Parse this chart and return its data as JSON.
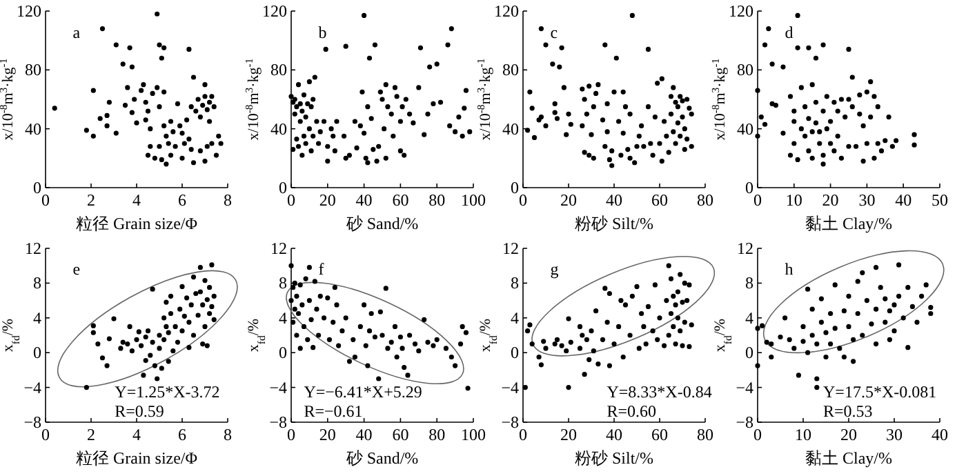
{
  "chart_data": [
    {
      "type": "scatter",
      "marker": "circle",
      "xlabel": "粒径 Grain size/Φ",
      "ylabel": "x/10$^{-8}$m$^{3}$·kg$^{-1}$",
      "annotations": [
        "a"
      ],
      "xlim": [
        0,
        8
      ],
      "xticks": [
        0,
        2,
        4,
        6,
        8
      ],
      "ylim": [
        0,
        120
      ],
      "yticks": [
        0,
        40,
        80,
        120
      ],
      "color": "#000000",
      "x": [
        0.4,
        1.8,
        2.1,
        2.1,
        2.4,
        2.5,
        2.7,
        2.8,
        2.7,
        3.1,
        3.1,
        3.4,
        3.5,
        3.6,
        3.7,
        3.8,
        3.8,
        3.9,
        4.0,
        4.2,
        4.3,
        4.4,
        4.4,
        4.5,
        4.6,
        4.6,
        4.5,
        4.7,
        4.8,
        4.9,
        4.9,
        5.0,
        5.0,
        5.0,
        5.1,
        5.1,
        5.2,
        5.2,
        5.2,
        5.3,
        5.3,
        5.4,
        5.5,
        5.5,
        5.6,
        5.7,
        5.8,
        5.9,
        6.0,
        6.0,
        6.1,
        6.2,
        6.3,
        6.3,
        6.4,
        6.4,
        6.5,
        6.5,
        6.6,
        6.7,
        6.8,
        6.8,
        6.9,
        7.0,
        7.0,
        7.0,
        7.1,
        7.1,
        7.2,
        7.2,
        7.3,
        7.3,
        7.4,
        7.5,
        7.6,
        7.7
      ],
      "values": [
        54,
        39,
        66,
        35,
        47,
        108,
        49,
        58,
        42,
        97,
        37,
        84,
        56,
        68,
        95,
        82,
        51,
        60,
        44,
        66,
        70,
        58,
        46,
        52,
        40,
        28,
        22,
        64,
        20,
        118,
        68,
        97,
        55,
        28,
        88,
        19,
        95,
        65,
        42,
        35,
        16,
        30,
        45,
        22,
        38,
        28,
        57,
        42,
        37,
        20,
        30,
        46,
        94,
        33,
        55,
        26,
        75,
        17,
        52,
        60,
        48,
        25,
        56,
        70,
        62,
        18,
        53,
        28,
        58,
        45,
        62,
        30,
        55,
        22,
        35,
        30
      ]
    },
    {
      "type": "scatter",
      "marker": "circle",
      "xlabel": "砂 Sand/%",
      "ylabel": "x/10$^{-8}$m$^{3}$·kg$^{-1}$",
      "annotations": [
        "b"
      ],
      "xlim": [
        0,
        100
      ],
      "xticks": [
        0,
        20,
        40,
        60,
        80,
        100
      ],
      "ylim": [
        0,
        120
      ],
      "yticks": [
        0,
        40,
        80,
        120
      ],
      "color": "#000000",
      "x": [
        0,
        1,
        1,
        2,
        2,
        3,
        3,
        4,
        4,
        5,
        5,
        6,
        6,
        7,
        7,
        8,
        8,
        9,
        10,
        10,
        11,
        11,
        12,
        12,
        13,
        14,
        15,
        16,
        18,
        19,
        20,
        20,
        22,
        23,
        24,
        25,
        29,
        30,
        30,
        32,
        35,
        36,
        38,
        39,
        40,
        40,
        41,
        42,
        42,
        43,
        44,
        45,
        46,
        47,
        48,
        49,
        50,
        51,
        52,
        52,
        53,
        55,
        56,
        57,
        58,
        60,
        60,
        61,
        62,
        63,
        65,
        67,
        70,
        71,
        73,
        75,
        76,
        78,
        80,
        82,
        86,
        87,
        88,
        90,
        92,
        94,
        95,
        96,
        98
      ],
      "values": [
        62,
        58,
        26,
        60,
        50,
        55,
        33,
        70,
        28,
        57,
        45,
        52,
        22,
        63,
        35,
        48,
        30,
        57,
        72,
        40,
        55,
        25,
        60,
        35,
        75,
        45,
        30,
        38,
        45,
        94,
        28,
        18,
        40,
        35,
        25,
        45,
        35,
        96,
        20,
        22,
        45,
        27,
        42,
        65,
        117,
        37,
        20,
        55,
        17,
        88,
        47,
        26,
        97,
        18,
        28,
        65,
        60,
        40,
        70,
        20,
        55,
        50,
        35,
        68,
        62,
        45,
        25,
        55,
        22,
        60,
        50,
        44,
        68,
        95,
        36,
        50,
        82,
        57,
        84,
        58,
        97,
        42,
        108,
        38,
        48,
        35,
        54,
        66,
        38
      ]
    },
    {
      "type": "scatter",
      "marker": "circle",
      "xlabel": "粉砂 Silt/%",
      "ylabel": "x/10$^{-8}$m$^{3}$·kg$^{-1}$",
      "annotations": [
        "c"
      ],
      "xlim": [
        0,
        80
      ],
      "xticks": [
        0,
        20,
        40,
        60,
        80
      ],
      "ylim": [
        0,
        120
      ],
      "yticks": [
        0,
        40,
        80,
        120
      ],
      "color": "#000000",
      "x": [
        2,
        3,
        4,
        5,
        7,
        8,
        8,
        10,
        10,
        13,
        14,
        14,
        15,
        16,
        17,
        18,
        19,
        20,
        21,
        26,
        26,
        27,
        27,
        28,
        29,
        29,
        30,
        31,
        31,
        32,
        33,
        35,
        36,
        36,
        37,
        37,
        38,
        39,
        39,
        40,
        41,
        42,
        43,
        44,
        44,
        45,
        46,
        47,
        47,
        48,
        49,
        50,
        51,
        52,
        53,
        55,
        55,
        56,
        57,
        58,
        59,
        60,
        61,
        61,
        62,
        63,
        64,
        65,
        65,
        66,
        66,
        67,
        67,
        68,
        68,
        69,
        69,
        70,
        70,
        71,
        71,
        72,
        72,
        73,
        74,
        74
      ],
      "values": [
        39,
        65,
        54,
        34,
        46,
        108,
        48,
        97,
        42,
        84,
        57,
        51,
        47,
        82,
        95,
        68,
        36,
        50,
        43,
        67,
        42,
        24,
        60,
        50,
        69,
        22,
        36,
        55,
        20,
        64,
        70,
        46,
        97,
        28,
        38,
        57,
        19,
        15,
        25,
        65,
        88,
        45,
        22,
        65,
        37,
        55,
        26,
        20,
        50,
        117,
        17,
        28,
        35,
        42,
        28,
        94,
        55,
        30,
        22,
        48,
        71,
        30,
        74,
        18,
        45,
        35,
        24,
        62,
        50,
        38,
        68,
        58,
        30,
        55,
        44,
        62,
        35,
        59,
        48,
        26,
        40,
        60,
        33,
        54,
        28,
        50
      ]
    },
    {
      "type": "scatter",
      "marker": "circle",
      "xlabel": "黏土 Clay/%",
      "ylabel": "x/10$^{-8}$m$^{3}$·kg$^{-1}$",
      "annotations": [
        "d"
      ],
      "xlim": [
        0,
        50
      ],
      "xticks": [
        0,
        10,
        20,
        30,
        40,
        50
      ],
      "ylim": [
        0,
        120
      ],
      "yticks": [
        0,
        40,
        80,
        120
      ],
      "color": "#000000",
      "x": [
        0,
        0,
        1,
        2,
        2,
        3,
        4,
        4,
        5,
        7,
        7,
        9,
        9,
        10,
        10,
        10,
        11,
        11,
        11,
        12,
        12,
        13,
        13,
        14,
        14,
        14,
        15,
        15,
        15,
        16,
        16,
        16,
        17,
        17,
        18,
        18,
        18,
        18,
        19,
        19,
        20,
        20,
        21,
        21,
        22,
        22,
        23,
        23,
        24,
        25,
        25,
        25,
        26,
        26,
        27,
        28,
        28,
        29,
        29,
        30,
        30,
        31,
        31,
        32,
        32,
        33,
        33,
        34,
        35,
        36,
        37,
        38,
        43,
        43
      ],
      "values": [
        66,
        35,
        48,
        43,
        97,
        108,
        84,
        57,
        56,
        37,
        82,
        62,
        22,
        52,
        45,
        30,
        117,
        95,
        19,
        68,
        40,
        55,
        35,
        95,
        47,
        25,
        70,
        38,
        20,
        88,
        58,
        44,
        30,
        38,
        97,
        52,
        22,
        16,
        62,
        40,
        30,
        45,
        58,
        25,
        52,
        35,
        60,
        20,
        48,
        94,
        28,
        60,
        75,
        55,
        28,
        63,
        50,
        18,
        42,
        65,
        30,
        72,
        48,
        62,
        20,
        55,
        30,
        25,
        32,
        48,
        28,
        32,
        36,
        29
      ]
    },
    {
      "type": "scatter",
      "marker": "circle",
      "xlabel": "粒径 Grain size/Φ",
      "ylabel": "x$_{fd}$/%",
      "annotations": [
        "e",
        "Y=1.25*X-3.72",
        "R=0.59"
      ],
      "xlim": [
        0,
        8
      ],
      "xticks": [
        0,
        2,
        4,
        6,
        8
      ],
      "ylim": [
        -8,
        12
      ],
      "yticks": [
        -8,
        -4,
        0,
        4,
        8,
        12
      ],
      "color": "#000000",
      "x": [
        1.8,
        2.1,
        2.1,
        2.3,
        2.5,
        2.7,
        2.8,
        3.0,
        3.3,
        3.4,
        3.6,
        3.7,
        3.8,
        4.0,
        4.1,
        4.2,
        4.3,
        4.4,
        4.4,
        4.5,
        4.6,
        4.7,
        4.7,
        4.8,
        4.9,
        5.0,
        5.0,
        5.1,
        5.2,
        5.2,
        5.3,
        5.3,
        5.4,
        5.4,
        5.5,
        5.5,
        5.6,
        5.7,
        5.8,
        5.9,
        6.0,
        6.0,
        6.1,
        6.2,
        6.3,
        6.3,
        6.4,
        6.5,
        6.5,
        6.6,
        6.7,
        6.8,
        6.8,
        6.9,
        6.9,
        7.0,
        7.0,
        7.1,
        7.1,
        7.2,
        7.2,
        7.3,
        7.3,
        7.4,
        7.4
      ],
      "values": [
        -4.0,
        3.1,
        2.3,
        1.0,
        -0.6,
        -1.5,
        1.6,
        3.9,
        0.5,
        1.2,
        1.0,
        3.0,
        0.2,
        1.5,
        2.4,
        0.8,
        -2.6,
        1.8,
        -0.9,
        2.5,
        -0.3,
        7.3,
        1.2,
        -1.5,
        -3.0,
        2.0,
        0.5,
        -1.8,
        4.0,
        1.5,
        5.8,
        3.0,
        -1.0,
        2.3,
        6.5,
        4.5,
        0.2,
        3.0,
        1.2,
        5.0,
        7.6,
        2.5,
        4.2,
        6.3,
        0.6,
        3.5,
        5.5,
        8.7,
        2.0,
        6.8,
        4.3,
        9.8,
        7.0,
        1.0,
        5.5,
        8.3,
        3.0,
        6.1,
        0.8,
        4.5,
        7.5,
        10.1,
        5.3,
        3.8,
        6.5
      ]
    },
    {
      "type": "scatter",
      "marker": "circle",
      "xlabel": "砂 Sand/%",
      "ylabel": "x$_{fd}$/%",
      "annotations": [
        "f",
        "Y=−6.41*X+5.29",
        "R=−0.61"
      ],
      "xlim": [
        0,
        100
      ],
      "xticks": [
        0,
        20,
        40,
        60,
        80,
        100
      ],
      "ylim": [
        -8,
        12
      ],
      "yticks": [
        -8,
        -4,
        0,
        4,
        8,
        12
      ],
      "color": "#000000",
      "x": [
        0,
        0,
        1,
        1,
        2,
        2,
        3,
        3,
        4,
        5,
        5,
        6,
        7,
        8,
        9,
        10,
        10,
        11,
        12,
        13,
        14,
        15,
        16,
        18,
        20,
        21,
        23,
        24,
        25,
        26,
        28,
        30,
        32,
        34,
        35,
        38,
        40,
        41,
        42,
        43,
        44,
        46,
        48,
        49,
        50,
        52,
        53,
        55,
        57,
        58,
        60,
        61,
        62,
        64,
        65,
        68,
        70,
        73,
        75,
        78,
        80,
        85,
        88,
        90,
        93,
        94,
        96,
        97
      ],
      "values": [
        10.0,
        6.0,
        3.5,
        7.5,
        5.0,
        8.0,
        2.0,
        6.5,
        4.5,
        7.8,
        0.5,
        5.5,
        3.0,
        8.5,
        1.5,
        9.8,
        6.0,
        3.8,
        0.6,
        8.2,
        5.0,
        2.0,
        6.5,
        4.0,
        6.3,
        1.5,
        3.5,
        7.5,
        5.5,
        0.8,
        2.5,
        4.0,
        -1.0,
        1.5,
        -0.5,
        3.0,
        5.5,
        0.8,
        -1.5,
        2.5,
        4.5,
        1.8,
        -3.0,
        4.7,
        2.0,
        7.4,
        0.5,
        1.2,
        3.0,
        -0.5,
        1.8,
        0.5,
        -1.7,
        -2.6,
        2.0,
        1.0,
        0.2,
        3.8,
        1.2,
        0.8,
        1.5,
        0.5,
        -0.5,
        -1.5,
        1.0,
        3.0,
        2.3,
        -4.1
      ]
    },
    {
      "type": "scatter",
      "marker": "circle",
      "xlabel": "粉砂 Silt/%",
      "ylabel": "x$_{fd}$/%",
      "annotations": [
        "g",
        "Y=8.33*X-0.84",
        "R=0.60"
      ],
      "xlim": [
        0,
        80
      ],
      "xticks": [
        0,
        20,
        40,
        60,
        80
      ],
      "ylim": [
        -8,
        12
      ],
      "yticks": [
        -8,
        -4,
        0,
        4,
        8,
        12
      ],
      "color": "#000000",
      "x": [
        1,
        2,
        3,
        4,
        7,
        8,
        9,
        10,
        14,
        15,
        17,
        19,
        20,
        20,
        21,
        25,
        25,
        26,
        27,
        28,
        29,
        30,
        31,
        32,
        33,
        35,
        36,
        37,
        38,
        38,
        40,
        42,
        43,
        44,
        45,
        47,
        48,
        50,
        51,
        52,
        53,
        54,
        55,
        57,
        58,
        59,
        60,
        62,
        63,
        64,
        64,
        65,
        65,
        66,
        66,
        67,
        67,
        68,
        68,
        69,
        69,
        70,
        70,
        71,
        71,
        72,
        73,
        73,
        74
      ],
      "values": [
        -4.0,
        2.5,
        3.2,
        1.0,
        -0.5,
        -1.4,
        1.3,
        0.5,
        1.0,
        1.5,
        0.8,
        0.2,
        3.9,
        -4.0,
        1.2,
        3.0,
        0.5,
        2.0,
        -2.5,
        1.5,
        -0.8,
        2.5,
        0.2,
        4.8,
        -1.3,
        1.5,
        7.4,
        3.5,
        -1.5,
        6.8,
        1.0,
        3.0,
        6.0,
        -0.5,
        5.5,
        2.0,
        6.5,
        7.6,
        0.5,
        4.5,
        3.0,
        1.0,
        5.3,
        2.5,
        7.8,
        1.5,
        4.0,
        0.8,
        6.0,
        10.0,
        2.0,
        4.5,
        8.5,
        3.0,
        6.5,
        5.5,
        1.0,
        7.0,
        4.0,
        9.0,
        2.5,
        5.8,
        0.8,
        8.0,
        3.5,
        6.0,
        7.8,
        0.7,
        3.2
      ]
    },
    {
      "type": "scatter",
      "marker": "circle",
      "xlabel": "黏土 Clay/%",
      "ylabel": "x$_{fd}$/%",
      "annotations": [
        "h",
        "Y=17.5*X-0.081",
        "R=0.53"
      ],
      "xlim": [
        0,
        40
      ],
      "xticks": [
        0,
        10,
        20,
        30,
        40
      ],
      "ylim": [
        -8,
        12
      ],
      "yticks": [
        -8,
        -4,
        0,
        4,
        8,
        12
      ],
      "color": "#000000",
      "x": [
        0,
        0,
        1,
        2,
        3,
        3,
        5,
        6,
        7,
        8,
        9,
        10,
        10,
        11,
        11,
        12,
        12,
        13,
        13,
        13,
        14,
        14,
        15,
        15,
        16,
        16,
        17,
        17,
        18,
        19,
        19,
        20,
        20,
        21,
        21,
        22,
        22,
        23,
        23,
        24,
        25,
        26,
        26,
        26,
        27,
        28,
        28,
        29,
        29,
        30,
        30,
        31,
        31,
        32,
        33,
        33,
        34,
        35,
        36,
        37,
        38,
        38
      ],
      "values": [
        -1.5,
        2.8,
        3.1,
        1.2,
        -0.5,
        1.0,
        1.8,
        4.0,
        1.5,
        0.5,
        -2.6,
        1.3,
        3.0,
        7.3,
        0.0,
        2.0,
        5.0,
        -3.0,
        -4.0,
        1.0,
        3.5,
        6.2,
        -0.5,
        2.3,
        4.5,
        1.0,
        7.8,
        2.8,
        0.5,
        4.8,
        -0.5,
        6.5,
        3.0,
        -1.0,
        1.5,
        8.2,
        4.5,
        9.2,
        2.0,
        6.0,
        3.3,
        9.8,
        5.0,
        1.0,
        7.5,
        3.5,
        6.2,
        1.5,
        4.8,
        5.5,
        2.5,
        10.1,
        6.5,
        4.0,
        7.5,
        0.6,
        5.3,
        3.5,
        6.5,
        7.8,
        5.2,
        4.5
      ]
    }
  ]
}
